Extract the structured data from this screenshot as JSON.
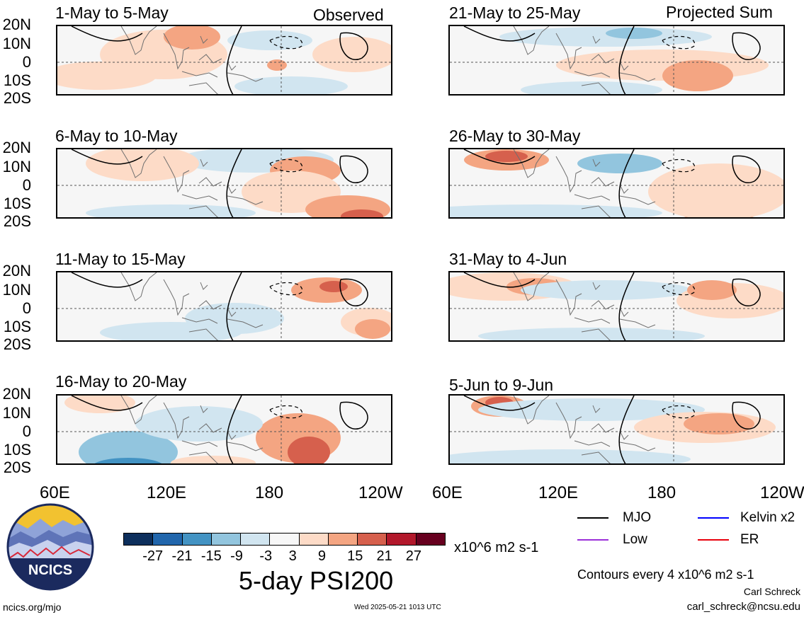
{
  "panels": {
    "left": [
      {
        "title": "1-May to 5-May",
        "corner": "Observed"
      },
      {
        "title": "6-May to 10-May",
        "corner": ""
      },
      {
        "title": "11-May to 15-May",
        "corner": ""
      },
      {
        "title": "16-May to 20-May",
        "corner": ""
      }
    ],
    "right": [
      {
        "title": "21-May to 25-May",
        "corner": "Projected Sum"
      },
      {
        "title": "26-May to 30-May",
        "corner": ""
      },
      {
        "title": "31-May to 4-Jun",
        "corner": ""
      },
      {
        "title": "5-Jun to 9-Jun",
        "corner": ""
      }
    ]
  },
  "lat_ticks": [
    "20N",
    "10N",
    "0",
    "10S",
    "20S"
  ],
  "lon_ticks": [
    "60E",
    "120E",
    "180",
    "120W"
  ],
  "colorbar": {
    "labels": [
      "-27",
      "-21",
      "-15",
      "-9",
      "-3",
      "3",
      "9",
      "15",
      "21",
      "27"
    ],
    "colors": [
      "#0d2f5c",
      "#2166ac",
      "#4393c3",
      "#92c5de",
      "#d1e5f0",
      "#f7f7f7",
      "#fddbc7",
      "#f4a582",
      "#d6604d",
      "#b2182b",
      "#67001f"
    ],
    "units": "x10^6 m2 s-1"
  },
  "main_title": "5-day PSI200",
  "legend": [
    {
      "label": "MJO",
      "color": "#000000"
    },
    {
      "label": "Kelvin x2",
      "color": "#0000ff"
    },
    {
      "label": "Low",
      "color": "#9b30d9"
    },
    {
      "label": "ER",
      "color": "#e8000b"
    }
  ],
  "contour_note": "Contours every 4 x10^6 m2 s-1",
  "author": "Carl Schreck",
  "email": "carl_schreck@ncsu.edu",
  "site": "ncics.org/mjo",
  "timestamp": "Wed 2025-05-21 1013 UTC",
  "logo_text": "NCICS"
}
